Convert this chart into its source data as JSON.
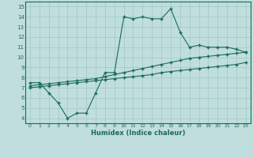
{
  "line1_x": [
    0,
    1,
    2,
    3,
    4,
    5,
    6,
    7,
    8,
    9,
    10,
    11,
    12,
    13,
    14,
    15,
    16,
    17,
    18,
    19,
    20,
    21,
    22,
    23
  ],
  "line1_y": [
    7.5,
    7.5,
    6.5,
    5.5,
    4.0,
    4.5,
    4.5,
    6.5,
    8.5,
    8.5,
    14.0,
    13.8,
    14.0,
    13.8,
    13.8,
    14.8,
    12.5,
    11.0,
    11.2,
    11.0,
    11.0,
    11.0,
    10.8,
    10.5
  ],
  "line2_x": [
    0,
    1,
    2,
    3,
    4,
    5,
    6,
    7,
    8,
    9,
    10,
    11,
    12,
    13,
    14,
    15,
    16,
    17,
    18,
    19,
    20,
    21,
    22,
    23
  ],
  "line2_y": [
    7.2,
    7.3,
    7.4,
    7.5,
    7.6,
    7.7,
    7.8,
    7.9,
    8.1,
    8.3,
    8.5,
    8.7,
    8.9,
    9.1,
    9.3,
    9.5,
    9.7,
    9.9,
    10.0,
    10.1,
    10.2,
    10.3,
    10.4,
    10.5
  ],
  "line3_x": [
    0,
    1,
    2,
    3,
    4,
    5,
    6,
    7,
    8,
    9,
    10,
    11,
    12,
    13,
    14,
    15,
    16,
    17,
    18,
    19,
    20,
    21,
    22,
    23
  ],
  "line3_y": [
    7.0,
    7.1,
    7.2,
    7.3,
    7.4,
    7.5,
    7.6,
    7.7,
    7.8,
    7.9,
    8.0,
    8.1,
    8.2,
    8.3,
    8.5,
    8.6,
    8.7,
    8.8,
    8.9,
    9.0,
    9.1,
    9.2,
    9.3,
    9.5
  ],
  "color": "#1a6b5a",
  "bg_color": "#c0dedd",
  "grid_color": "#a0c8c4",
  "xlabel": "Humidex (Indice chaleur)",
  "xlim": [
    -0.5,
    23.5
  ],
  "ylim": [
    3.5,
    15.5
  ],
  "xticks": [
    0,
    1,
    2,
    3,
    4,
    5,
    6,
    7,
    8,
    9,
    10,
    11,
    12,
    13,
    14,
    15,
    16,
    17,
    18,
    19,
    20,
    21,
    22,
    23
  ],
  "yticks": [
    4,
    5,
    6,
    7,
    8,
    9,
    10,
    11,
    12,
    13,
    14,
    15
  ]
}
